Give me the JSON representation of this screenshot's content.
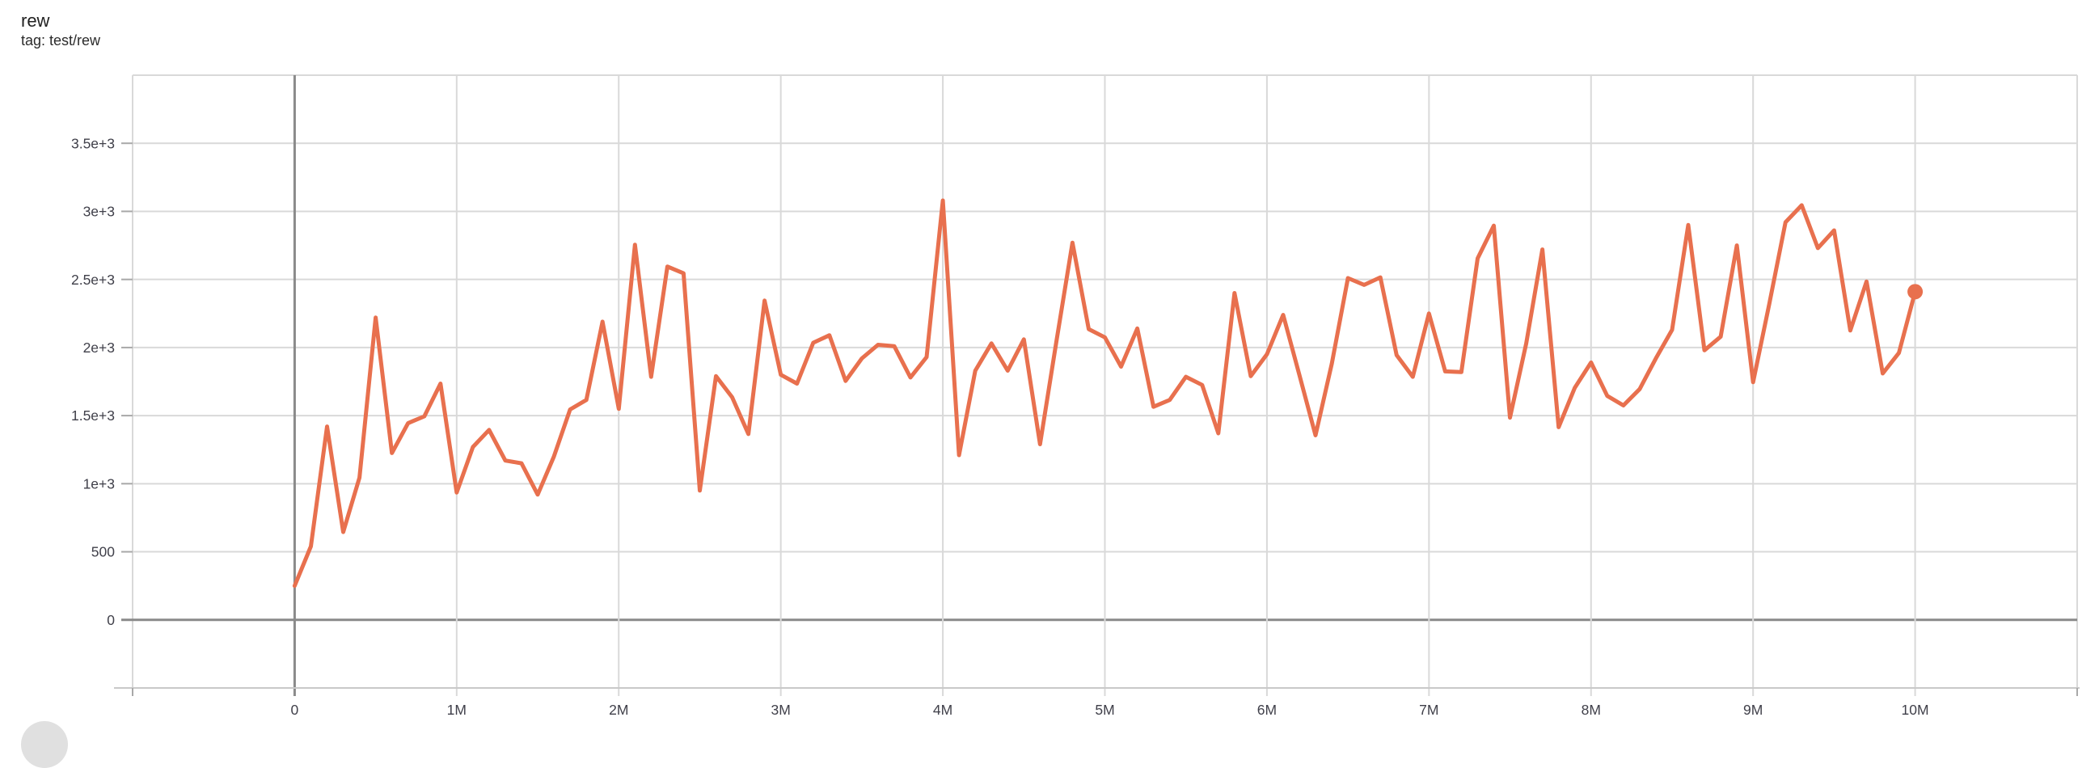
{
  "header": {
    "title": "rew",
    "subtitle": "tag: test/rew"
  },
  "chart_data": {
    "type": "line",
    "title": "rew",
    "subtitle": "tag: test/rew",
    "xlabel": "",
    "ylabel": "",
    "grid": true,
    "legend": "none",
    "colors": {
      "line": "#e8704e",
      "grid_light": "#d9d9d9",
      "grid_zero": "#8a8a8a",
      "axis_line": "#c9c9c9",
      "tick": "#a8a8a8",
      "label": "#40404a"
    },
    "x_axis": {
      "min": -1000000,
      "max": 11000000,
      "ticks": [
        {
          "value": 0,
          "label": "0"
        },
        {
          "value": 1000000,
          "label": "1M"
        },
        {
          "value": 2000000,
          "label": "2M"
        },
        {
          "value": 3000000,
          "label": "3M"
        },
        {
          "value": 4000000,
          "label": "4M"
        },
        {
          "value": 5000000,
          "label": "5M"
        },
        {
          "value": 6000000,
          "label": "6M"
        },
        {
          "value": 7000000,
          "label": "7M"
        },
        {
          "value": 8000000,
          "label": "8M"
        },
        {
          "value": 9000000,
          "label": "9M"
        },
        {
          "value": 10000000,
          "label": "10M"
        }
      ]
    },
    "y_axis": {
      "min": -500,
      "max": 4000,
      "ticks": [
        {
          "value": 0,
          "label": "0"
        },
        {
          "value": 500,
          "label": "500"
        },
        {
          "value": 1000,
          "label": "1e+3"
        },
        {
          "value": 1500,
          "label": "1.5e+3"
        },
        {
          "value": 2000,
          "label": "2e+3"
        },
        {
          "value": 2500,
          "label": "2.5e+3"
        },
        {
          "value": 3000,
          "label": "3e+3"
        },
        {
          "value": 3500,
          "label": "3.5e+3"
        }
      ]
    },
    "series": [
      {
        "name": "test/rew",
        "color": "#e8704e",
        "end_marker": true,
        "points": [
          [
            0,
            250
          ],
          [
            100000,
            540
          ],
          [
            200000,
            1420
          ],
          [
            300000,
            645
          ],
          [
            400000,
            1045
          ],
          [
            500000,
            2220
          ],
          [
            600000,
            1225
          ],
          [
            700000,
            1445
          ],
          [
            800000,
            1495
          ],
          [
            900000,
            1735
          ],
          [
            1000000,
            935
          ],
          [
            1100000,
            1270
          ],
          [
            1200000,
            1395
          ],
          [
            1300000,
            1170
          ],
          [
            1400000,
            1150
          ],
          [
            1500000,
            920
          ],
          [
            1600000,
            1200
          ],
          [
            1700000,
            1545
          ],
          [
            1800000,
            1615
          ],
          [
            1900000,
            2190
          ],
          [
            2000000,
            1550
          ],
          [
            2100000,
            2755
          ],
          [
            2200000,
            1785
          ],
          [
            2300000,
            2595
          ],
          [
            2400000,
            2545
          ],
          [
            2500000,
            950
          ],
          [
            2600000,
            1790
          ],
          [
            2700000,
            1635
          ],
          [
            2800000,
            1365
          ],
          [
            2900000,
            2345
          ],
          [
            3000000,
            1800
          ],
          [
            3100000,
            1735
          ],
          [
            3200000,
            2035
          ],
          [
            3300000,
            2090
          ],
          [
            3400000,
            1755
          ],
          [
            3500000,
            1920
          ],
          [
            3600000,
            2020
          ],
          [
            3700000,
            2010
          ],
          [
            3800000,
            1780
          ],
          [
            3900000,
            1930
          ],
          [
            4000000,
            3080
          ],
          [
            4100000,
            1210
          ],
          [
            4200000,
            1830
          ],
          [
            4300000,
            2030
          ],
          [
            4400000,
            1830
          ],
          [
            4500000,
            2060
          ],
          [
            4600000,
            1290
          ],
          [
            4700000,
            2040
          ],
          [
            4800000,
            2770
          ],
          [
            4900000,
            2135
          ],
          [
            5000000,
            2075
          ],
          [
            5100000,
            1860
          ],
          [
            5200000,
            2140
          ],
          [
            5300000,
            1565
          ],
          [
            5400000,
            1615
          ],
          [
            5500000,
            1785
          ],
          [
            5600000,
            1725
          ],
          [
            5700000,
            1370
          ],
          [
            5800000,
            2400
          ],
          [
            5900000,
            1790
          ],
          [
            6000000,
            1950
          ],
          [
            6100000,
            2240
          ],
          [
            6200000,
            1800
          ],
          [
            6300000,
            1355
          ],
          [
            6400000,
            1880
          ],
          [
            6500000,
            2510
          ],
          [
            6600000,
            2460
          ],
          [
            6700000,
            2515
          ],
          [
            6800000,
            1945
          ],
          [
            6900000,
            1785
          ],
          [
            7000000,
            2250
          ],
          [
            7100000,
            1825
          ],
          [
            7200000,
            1820
          ],
          [
            7300000,
            2655
          ],
          [
            7400000,
            2895
          ],
          [
            7500000,
            1485
          ],
          [
            7600000,
            2030
          ],
          [
            7700000,
            2720
          ],
          [
            7800000,
            1415
          ],
          [
            7900000,
            1705
          ],
          [
            8000000,
            1890
          ],
          [
            8100000,
            1645
          ],
          [
            8200000,
            1575
          ],
          [
            8300000,
            1695
          ],
          [
            8400000,
            1920
          ],
          [
            8500000,
            2130
          ],
          [
            8600000,
            2900
          ],
          [
            8700000,
            1980
          ],
          [
            8800000,
            2080
          ],
          [
            8900000,
            2750
          ],
          [
            9000000,
            1745
          ],
          [
            9100000,
            2320
          ],
          [
            9200000,
            2920
          ],
          [
            9300000,
            3045
          ],
          [
            9400000,
            2730
          ],
          [
            9500000,
            2860
          ],
          [
            9600000,
            2125
          ],
          [
            9700000,
            2485
          ],
          [
            9800000,
            1810
          ],
          [
            9900000,
            1960
          ],
          [
            10000000,
            2410
          ]
        ]
      }
    ]
  }
}
